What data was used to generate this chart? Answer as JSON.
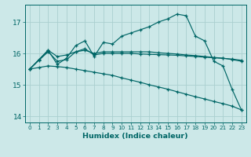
{
  "xlabel": "Humidex (Indice chaleur)",
  "bg_color": "#cce8e8",
  "grid_color": "#aacfcf",
  "line_color": "#006666",
  "xlim": [
    -0.5,
    23.5
  ],
  "ylim": [
    13.8,
    17.55
  ],
  "yticks": [
    14,
    15,
    16,
    17
  ],
  "xticks": [
    0,
    1,
    2,
    3,
    4,
    5,
    6,
    7,
    8,
    9,
    10,
    11,
    12,
    13,
    14,
    15,
    16,
    17,
    18,
    19,
    20,
    21,
    22,
    23
  ],
  "series": [
    [
      15.5,
      15.8,
      16.1,
      15.65,
      15.85,
      16.25,
      16.4,
      15.9,
      16.35,
      16.3,
      16.55,
      16.65,
      16.75,
      16.85,
      17.0,
      17.1,
      17.25,
      17.2,
      16.55,
      16.4,
      15.75,
      15.6,
      14.85,
      14.2
    ],
    [
      15.5,
      15.8,
      16.1,
      15.9,
      15.95,
      16.05,
      16.1,
      16.0,
      16.05,
      16.05,
      16.05,
      16.05,
      16.05,
      16.05,
      16.02,
      16.0,
      15.98,
      15.95,
      15.93,
      15.9,
      15.87,
      15.85,
      15.8,
      15.75
    ],
    [
      15.5,
      15.78,
      16.05,
      15.75,
      15.8,
      16.05,
      16.15,
      15.95,
      16.0,
      16.0,
      16.0,
      16.0,
      15.98,
      15.97,
      15.96,
      15.95,
      15.94,
      15.92,
      15.9,
      15.88,
      15.86,
      15.84,
      15.82,
      15.78
    ],
    [
      15.5,
      15.55,
      15.6,
      15.58,
      15.55,
      15.5,
      15.45,
      15.4,
      15.35,
      15.3,
      15.22,
      15.15,
      15.08,
      15.0,
      14.93,
      14.86,
      14.78,
      14.7,
      14.62,
      14.55,
      14.47,
      14.4,
      14.32,
      14.2
    ]
  ]
}
